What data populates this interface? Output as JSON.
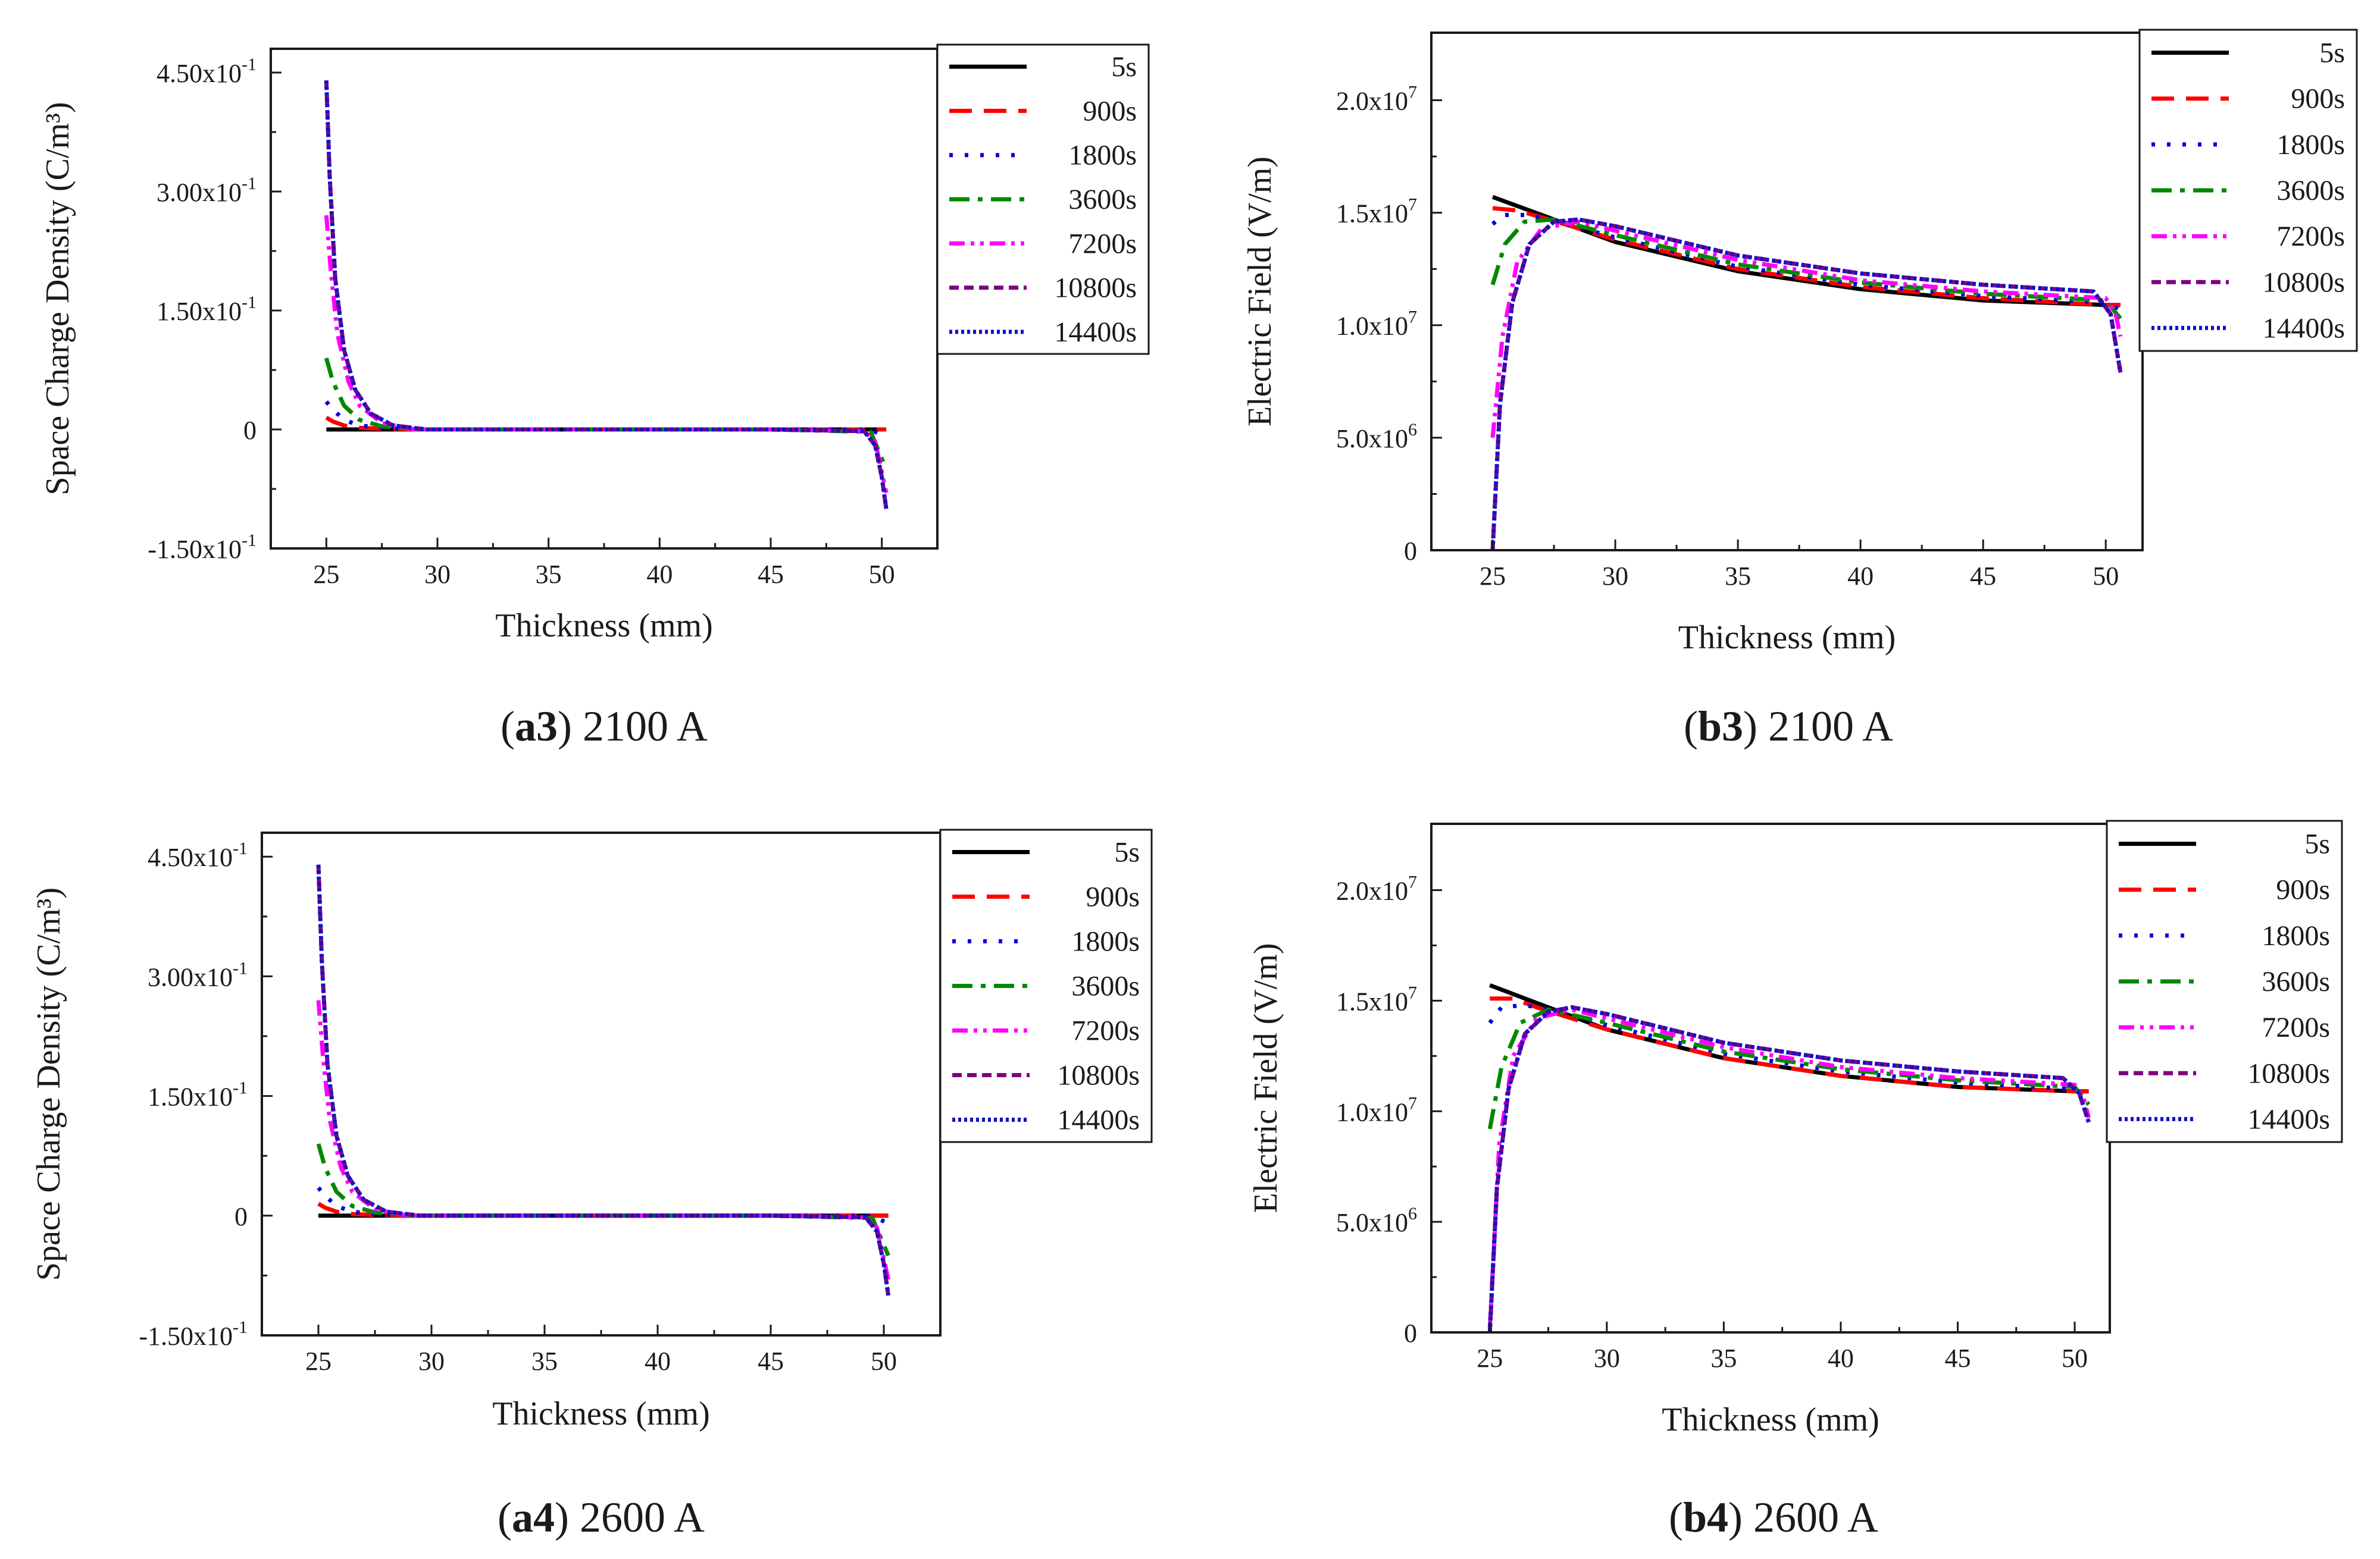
{
  "chart_data": [
    {
      "id": "a3",
      "type": "line",
      "caption_letter": "a3",
      "caption_rest": ") 2100 A",
      "xlabel": "Thickness (mm)",
      "ylabel": "Space Charge Density (C/m³)",
      "xlim": [
        22.5,
        52.5
      ],
      "ylim": [
        -0.15,
        0.48
      ],
      "xticks": [
        25,
        30,
        35,
        40,
        45,
        50
      ],
      "yticks": [
        {
          "value": 0.45,
          "mant": "4.50x10",
          "exp": "-1"
        },
        {
          "value": 0.3,
          "mant": "3.00x10",
          "exp": "-1"
        },
        {
          "value": 0.15,
          "mant": "1.50x10",
          "exp": "-1"
        },
        {
          "value": 0,
          "mant": "0",
          "exp": ""
        },
        {
          "value": -0.15,
          "mant": "-1.50x10",
          "exp": "-1"
        }
      ],
      "series": [
        {
          "name": "5s",
          "color": "#000000",
          "dash": "solid",
          "x": [
            25,
            30,
            35,
            40,
            45,
            50,
            50.2
          ],
          "y": [
            0,
            0,
            0,
            0,
            0,
            0,
            0
          ]
        },
        {
          "name": "900s",
          "color": "#ff0000",
          "dash": "dash",
          "x": [
            25,
            25.3,
            25.8,
            26.5,
            27.5,
            29,
            35,
            45,
            49.5,
            50.2
          ],
          "y": [
            0.015,
            0.01,
            0.005,
            0.002,
            0.001,
            0,
            0,
            0,
            0,
            0
          ]
        },
        {
          "name": "1800s",
          "color": "#0000dd",
          "dash": "dot",
          "x": [
            25,
            25.3,
            25.8,
            26.5,
            27.5,
            29,
            35,
            45,
            49.5,
            50.2
          ],
          "y": [
            0.035,
            0.025,
            0.012,
            0.005,
            0.002,
            0,
            0,
            0,
            0,
            -0.01
          ]
        },
        {
          "name": "3600s",
          "color": "#008800",
          "dash": "dashdot",
          "x": [
            25,
            25.3,
            25.8,
            26.5,
            27.5,
            29,
            35,
            45,
            49.5,
            50.2
          ],
          "y": [
            0.09,
            0.06,
            0.03,
            0.012,
            0.004,
            0,
            0,
            0,
            -0.003,
            -0.05
          ]
        },
        {
          "name": "7200s",
          "color": "#ff00ff",
          "dash": "dashdotdot",
          "x": [
            25,
            25.2,
            25.5,
            26,
            26.5,
            27.5,
            29,
            35,
            45,
            49.2,
            49.7,
            50.2
          ],
          "y": [
            0.27,
            0.2,
            0.12,
            0.06,
            0.03,
            0.008,
            0,
            0,
            0,
            -0.002,
            -0.015,
            -0.08
          ]
        },
        {
          "name": "10800s",
          "color": "#800080",
          "dash": "shortdash",
          "x": [
            25,
            25.15,
            25.4,
            25.8,
            26.3,
            27,
            28,
            29.5,
            35,
            45,
            49.2,
            49.7,
            50,
            50.2
          ],
          "y": [
            0.44,
            0.32,
            0.19,
            0.1,
            0.05,
            0.02,
            0.005,
            0,
            0,
            0,
            -0.002,
            -0.02,
            -0.06,
            -0.1
          ]
        },
        {
          "name": "14400s",
          "color": "#1010cc",
          "dash": "densedot",
          "x": [
            25,
            25.15,
            25.4,
            25.8,
            26.3,
            27,
            28,
            29.5,
            35,
            45,
            49.2,
            49.7,
            50,
            50.2
          ],
          "y": [
            0.44,
            0.32,
            0.19,
            0.1,
            0.05,
            0.02,
            0.005,
            0,
            0,
            0,
            -0.002,
            -0.02,
            -0.06,
            -0.1
          ]
        }
      ]
    },
    {
      "id": "b3",
      "type": "line",
      "caption_letter": "b3",
      "caption_rest": ") 2100 A",
      "xlabel": "Thickness (mm)",
      "ylabel": "Electric Field (V/m)",
      "xlim": [
        22.5,
        51.5
      ],
      "ylim": [
        0,
        23000000
      ],
      "xticks": [
        25,
        30,
        35,
        40,
        45,
        50
      ],
      "yticks": [
        {
          "value": 20000000,
          "mant": "2.0x10",
          "exp": "7"
        },
        {
          "value": 15000000,
          "mant": "1.5x10",
          "exp": "7"
        },
        {
          "value": 10000000,
          "mant": "1.0x10",
          "exp": "7"
        },
        {
          "value": 5000000,
          "mant": "5.0x10",
          "exp": "6"
        },
        {
          "value": 0,
          "mant": "0",
          "exp": ""
        }
      ],
      "series": [
        {
          "name": "5s",
          "color": "#000000",
          "dash": "solid",
          "x": [
            25,
            27,
            30,
            35,
            40,
            45,
            50,
            50.6
          ],
          "y": [
            15700000,
            14900000,
            13700000,
            12400000,
            11600000,
            11100000,
            10900000,
            10900000
          ]
        },
        {
          "name": "900s",
          "color": "#ff0000",
          "dash": "dash",
          "x": [
            25,
            26,
            27,
            30,
            35,
            40,
            45,
            50,
            50.6
          ],
          "y": [
            15200000,
            15100000,
            14800000,
            13800000,
            12500000,
            11700000,
            11200000,
            10900000,
            10900000
          ]
        },
        {
          "name": "1800s",
          "color": "#0000dd",
          "dash": "dot",
          "x": [
            25,
            25.5,
            26.5,
            28,
            30,
            35,
            40,
            45,
            50,
            50.6
          ],
          "y": [
            14500000,
            14900000,
            14900000,
            14500000,
            13900000,
            12600000,
            11800000,
            11300000,
            11000000,
            10700000
          ]
        },
        {
          "name": "3600s",
          "color": "#008800",
          "dash": "dashdot",
          "x": [
            25,
            25.5,
            26.3,
            27.5,
            30,
            35,
            40,
            45,
            50,
            50.6
          ],
          "y": [
            11800000,
            13600000,
            14600000,
            14700000,
            14000000,
            12700000,
            11900000,
            11400000,
            11100000,
            10300000
          ]
        },
        {
          "name": "7200s",
          "color": "#ff00ff",
          "dash": "dashdotdot",
          "x": [
            25,
            25.4,
            26,
            27,
            28.5,
            30,
            35,
            40,
            45,
            50,
            50.4,
            50.6
          ],
          "y": [
            5000000,
            9500000,
            12800000,
            14300000,
            14600000,
            14200000,
            12900000,
            12000000,
            11500000,
            11200000,
            10500000,
            9500000
          ]
        },
        {
          "name": "10800s",
          "color": "#800080",
          "dash": "shortdash",
          "x": [
            25,
            25.3,
            25.8,
            26.5,
            27.5,
            28.5,
            30,
            35,
            40,
            45,
            49.5,
            50.2,
            50.6
          ],
          "y": [
            0,
            6500000,
            11000000,
            13600000,
            14600000,
            14700000,
            14400000,
            13100000,
            12300000,
            11800000,
            11500000,
            10500000,
            7900000
          ]
        },
        {
          "name": "14400s",
          "color": "#1010cc",
          "dash": "densedot",
          "x": [
            25,
            25.3,
            25.8,
            26.5,
            27.5,
            28.5,
            30,
            35,
            40,
            45,
            49.5,
            50.2,
            50.6
          ],
          "y": [
            0,
            6500000,
            11000000,
            13600000,
            14600000,
            14700000,
            14400000,
            13100000,
            12300000,
            11800000,
            11500000,
            10500000,
            7900000
          ]
        }
      ]
    },
    {
      "id": "a4",
      "type": "line",
      "caption_letter": "a4",
      "caption_rest": ") 2600 A",
      "xlabel": "Thickness (mm)",
      "ylabel": "Space Charge Density (C/m³)",
      "xlim": [
        22.5,
        52.5
      ],
      "ylim": [
        -0.15,
        0.48
      ],
      "xticks": [
        25,
        30,
        35,
        40,
        45,
        50
      ],
      "yticks": [
        {
          "value": 0.45,
          "mant": "4.50x10",
          "exp": "-1"
        },
        {
          "value": 0.3,
          "mant": "3.00x10",
          "exp": "-1"
        },
        {
          "value": 0.15,
          "mant": "1.50x10",
          "exp": "-1"
        },
        {
          "value": 0,
          "mant": "0",
          "exp": ""
        },
        {
          "value": -0.15,
          "mant": "-1.50x10",
          "exp": "-1"
        }
      ],
      "series": [
        {
          "name": "5s",
          "color": "#000000",
          "dash": "solid",
          "x": [
            25,
            30,
            35,
            40,
            45,
            50,
            50.2
          ],
          "y": [
            0,
            0,
            0,
            0,
            0,
            0,
            0
          ]
        },
        {
          "name": "900s",
          "color": "#ff0000",
          "dash": "dash",
          "x": [
            25,
            25.3,
            25.8,
            26.5,
            27.5,
            29,
            35,
            45,
            49.5,
            50.2
          ],
          "y": [
            0.015,
            0.01,
            0.005,
            0.002,
            0.001,
            0,
            0,
            0,
            0,
            0
          ]
        },
        {
          "name": "1800s",
          "color": "#0000dd",
          "dash": "dot",
          "x": [
            25,
            25.3,
            25.8,
            26.5,
            27.5,
            29,
            35,
            45,
            49.5,
            50.2
          ],
          "y": [
            0.035,
            0.025,
            0.012,
            0.005,
            0.002,
            0,
            0,
            0,
            0,
            -0.01
          ]
        },
        {
          "name": "3600s",
          "color": "#008800",
          "dash": "dashdot",
          "x": [
            25,
            25.3,
            25.8,
            26.5,
            27.5,
            29,
            35,
            45,
            49.5,
            50.2
          ],
          "y": [
            0.09,
            0.06,
            0.03,
            0.012,
            0.004,
            0,
            0,
            0,
            -0.003,
            -0.05
          ]
        },
        {
          "name": "7200s",
          "color": "#ff00ff",
          "dash": "dashdotdot",
          "x": [
            25,
            25.2,
            25.5,
            26,
            26.5,
            27.5,
            29,
            35,
            45,
            49.2,
            49.7,
            50.2
          ],
          "y": [
            0.27,
            0.2,
            0.12,
            0.06,
            0.03,
            0.008,
            0,
            0,
            0,
            -0.002,
            -0.015,
            -0.08
          ]
        },
        {
          "name": "10800s",
          "color": "#800080",
          "dash": "shortdash",
          "x": [
            25,
            25.15,
            25.4,
            25.8,
            26.3,
            27,
            28,
            29.5,
            35,
            45,
            49.2,
            49.7,
            50,
            50.2
          ],
          "y": [
            0.44,
            0.32,
            0.19,
            0.1,
            0.05,
            0.02,
            0.005,
            0,
            0,
            0,
            -0.002,
            -0.02,
            -0.06,
            -0.1
          ]
        },
        {
          "name": "14400s",
          "color": "#1010cc",
          "dash": "densedot",
          "x": [
            25,
            25.15,
            25.4,
            25.8,
            26.3,
            27,
            28,
            29.5,
            35,
            45,
            49.2,
            49.7,
            50,
            50.2
          ],
          "y": [
            0.44,
            0.32,
            0.19,
            0.1,
            0.05,
            0.02,
            0.005,
            0,
            0,
            0,
            -0.002,
            -0.02,
            -0.06,
            -0.1
          ]
        }
      ]
    },
    {
      "id": "b4",
      "type": "line",
      "caption_letter": "b4",
      "caption_rest": ") 2600 A",
      "xlabel": "Thickness (mm)",
      "ylabel": "Electric Field (V/m)",
      "xlim": [
        22.5,
        51.5
      ],
      "ylim": [
        0,
        23000000
      ],
      "xticks": [
        25,
        30,
        35,
        40,
        45,
        50
      ],
      "yticks": [
        {
          "value": 20000000,
          "mant": "2.0x10",
          "exp": "7"
        },
        {
          "value": 15000000,
          "mant": "1.5x10",
          "exp": "7"
        },
        {
          "value": 10000000,
          "mant": "1.0x10",
          "exp": "7"
        },
        {
          "value": 5000000,
          "mant": "5.0x10",
          "exp": "6"
        },
        {
          "value": 0,
          "mant": "0",
          "exp": ""
        }
      ],
      "series": [
        {
          "name": "5s",
          "color": "#000000",
          "dash": "solid",
          "x": [
            25,
            27,
            30,
            35,
            40,
            45,
            50,
            50.6
          ],
          "y": [
            15700000,
            14900000,
            13700000,
            12400000,
            11600000,
            11100000,
            10900000,
            10900000
          ]
        },
        {
          "name": "900s",
          "color": "#ff0000",
          "dash": "dash",
          "x": [
            25,
            26,
            27,
            30,
            35,
            40,
            45,
            50,
            50.6
          ],
          "y": [
            15100000,
            15100000,
            14700000,
            13700000,
            12400000,
            11600000,
            11100000,
            10900000,
            10900000
          ]
        },
        {
          "name": "1800s",
          "color": "#0000dd",
          "dash": "dot",
          "x": [
            25,
            25.5,
            26.5,
            28,
            30,
            35,
            40,
            45,
            50,
            50.6
          ],
          "y": [
            14000000,
            14700000,
            14800000,
            14500000,
            13900000,
            12600000,
            11800000,
            11300000,
            11000000,
            10700000
          ]
        },
        {
          "name": "3600s",
          "color": "#008800",
          "dash": "dashdot",
          "x": [
            25,
            25.5,
            26.3,
            27.5,
            30,
            35,
            40,
            45,
            50,
            50.6
          ],
          "y": [
            9200000,
            12000000,
            14000000,
            14600000,
            14000000,
            12700000,
            11900000,
            11400000,
            11100000,
            10300000
          ]
        },
        {
          "name": "7200s",
          "color": "#ff00ff",
          "dash": "dashdotdot",
          "x": [
            25,
            25.4,
            26,
            27,
            28.5,
            30,
            35,
            40,
            45,
            50,
            50.4,
            50.6
          ],
          "y": [
            200000,
            8500000,
            12500000,
            14200000,
            14600000,
            14200000,
            12900000,
            12000000,
            11500000,
            11200000,
            10500000,
            9700000
          ]
        },
        {
          "name": "10800s",
          "color": "#800080",
          "dash": "shortdash",
          "x": [
            25,
            25.3,
            25.8,
            26.5,
            27.5,
            28.5,
            30,
            35,
            40,
            45,
            49.5,
            50.2,
            50.6
          ],
          "y": [
            0,
            6500000,
            11000000,
            13500000,
            14500000,
            14700000,
            14400000,
            13100000,
            12300000,
            11800000,
            11500000,
            10800000,
            9500000
          ]
        },
        {
          "name": "14400s",
          "color": "#1010cc",
          "dash": "densedot",
          "x": [
            25,
            25.3,
            25.8,
            26.5,
            27.5,
            28.5,
            30,
            35,
            40,
            45,
            49.5,
            50.2,
            50.6
          ],
          "y": [
            0,
            6500000,
            11000000,
            13500000,
            14500000,
            14700000,
            14400000,
            13100000,
            12300000,
            11800000,
            11500000,
            10800000,
            9500000
          ]
        }
      ]
    }
  ]
}
